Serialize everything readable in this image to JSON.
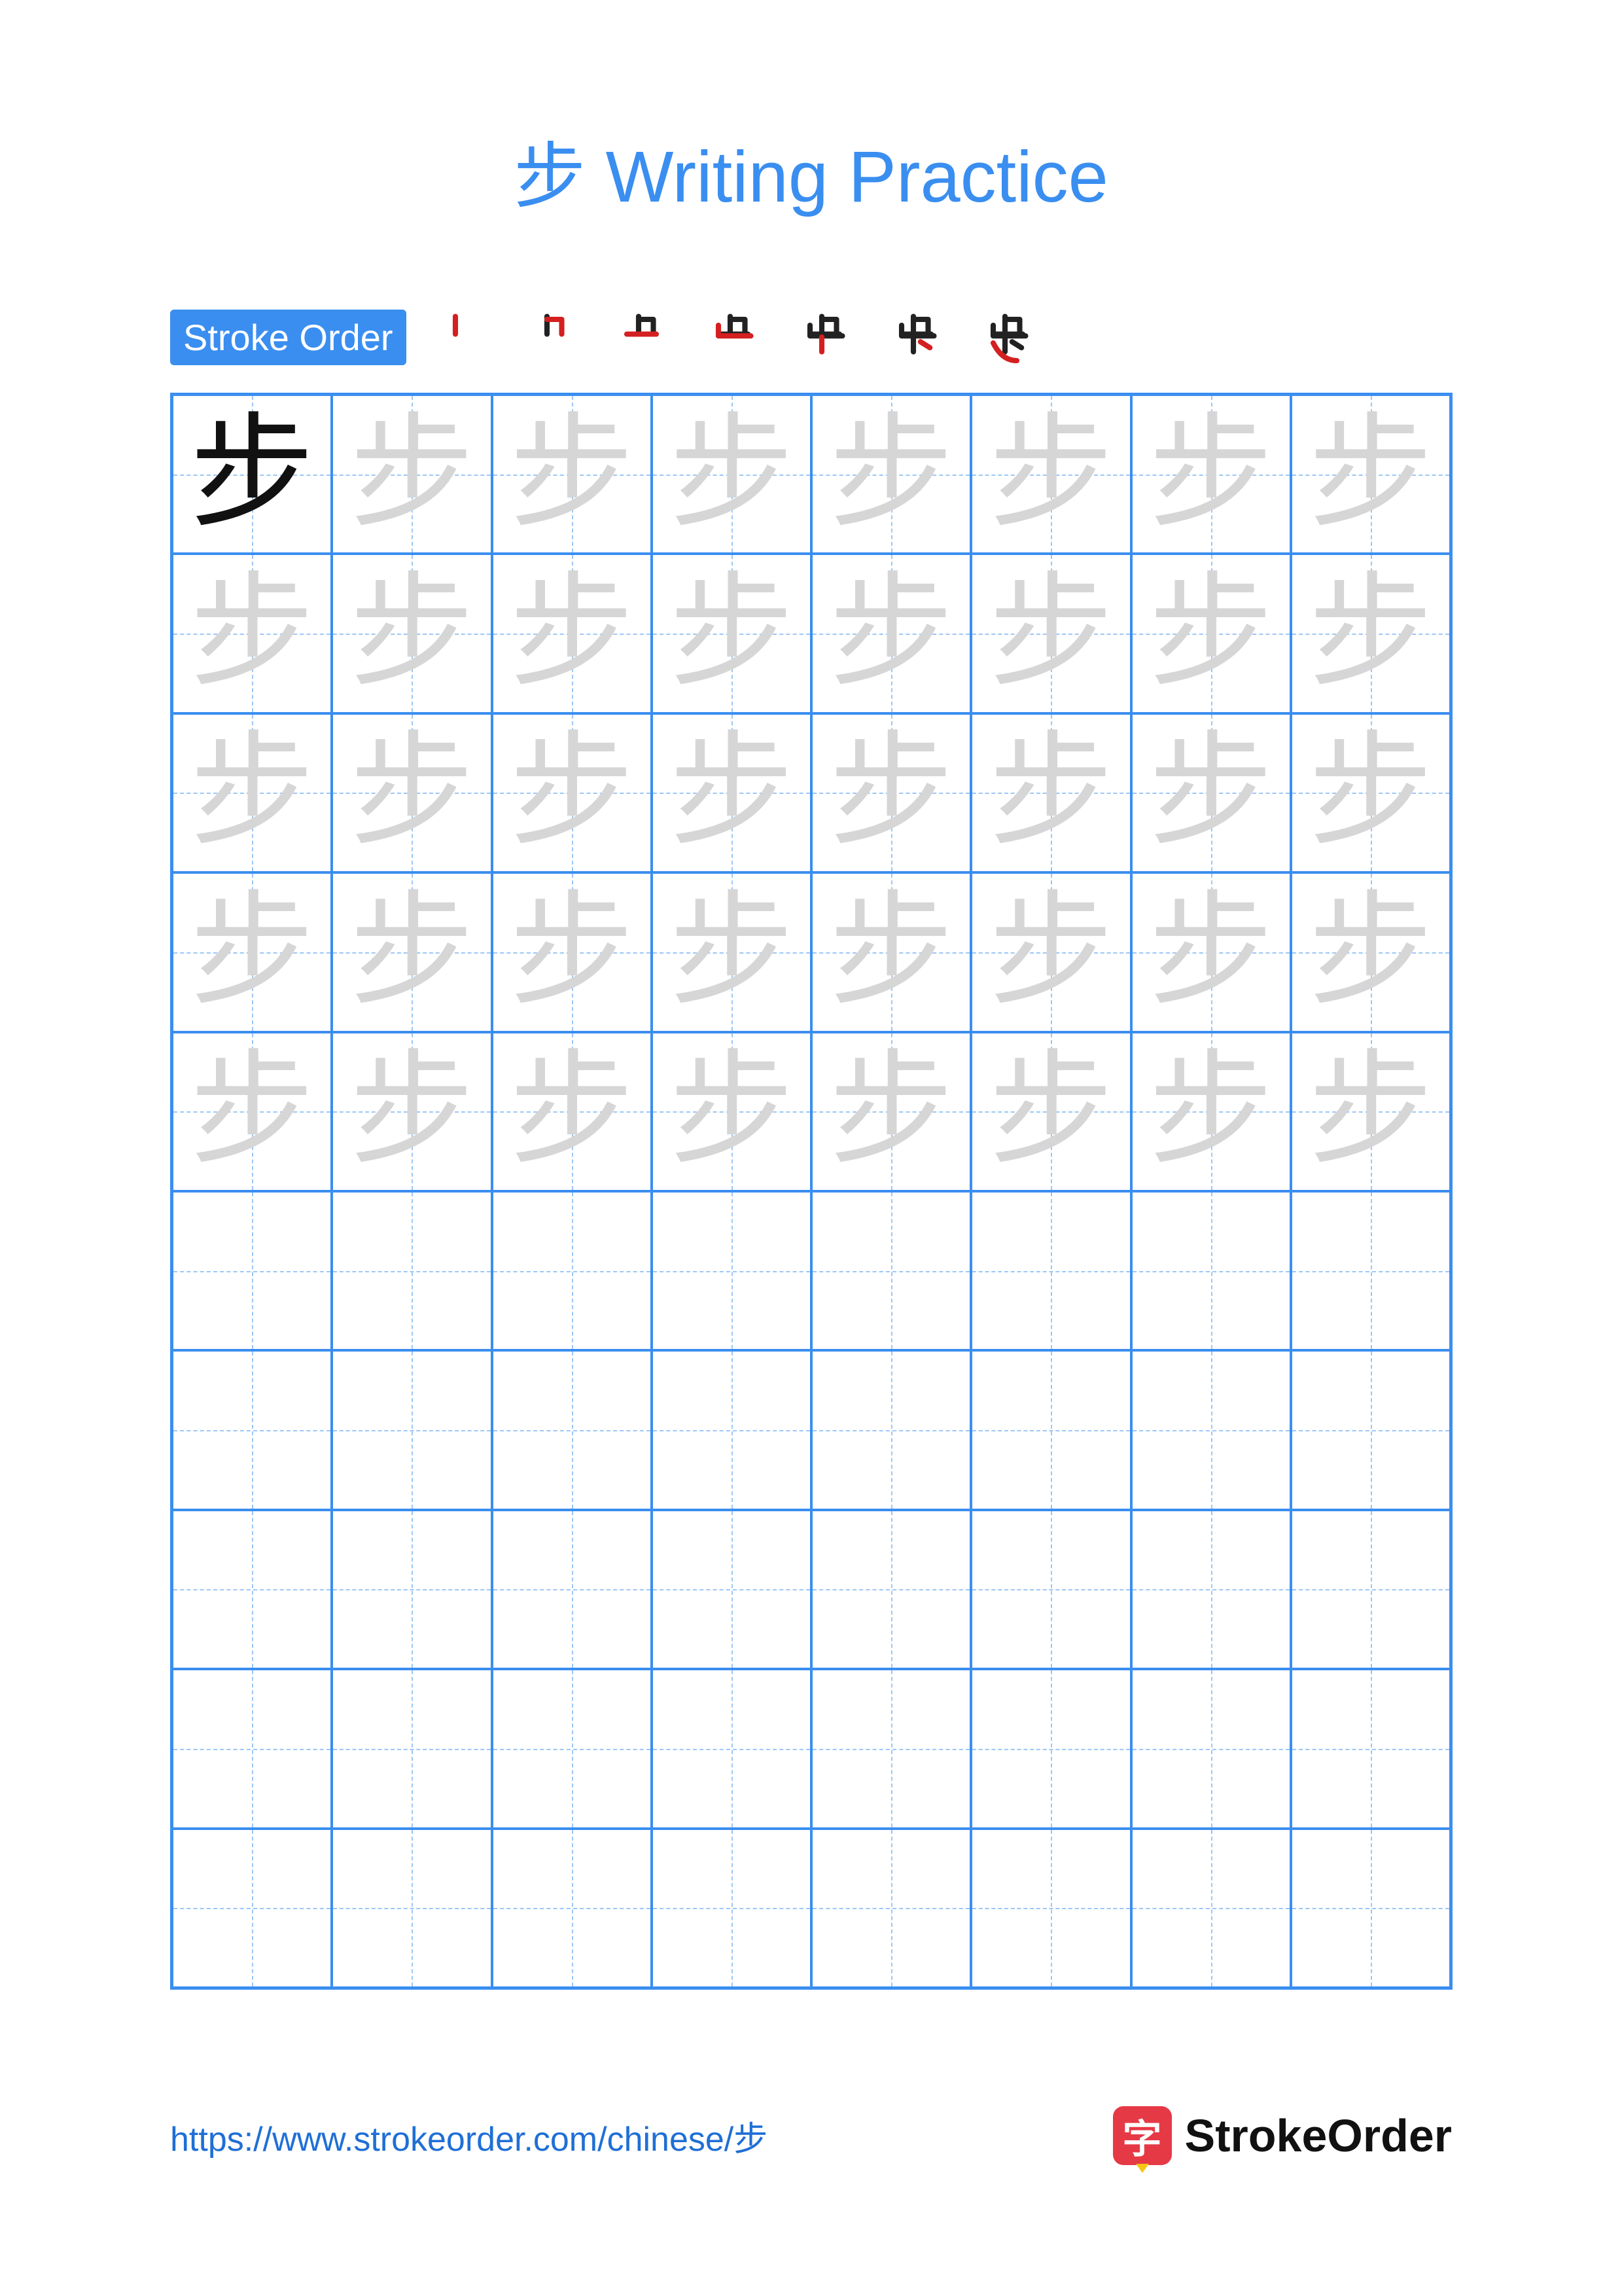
{
  "title_color": "#3a8ef0",
  "character": "步",
  "title": "步 Writing Practice",
  "stroke_order_label": "Stroke Order",
  "stroke_order_bg": "#3a8ef0",
  "stroke_count": 7,
  "stroke_black": "#222222",
  "stroke_red": "#d42020",
  "grid": {
    "cols": 8,
    "rows": 10,
    "trace_rows": 5,
    "border_color": "#3a8ef0",
    "guide_color": "#9cc7f7",
    "solid_char_color": "#111111",
    "trace_char_color": "#d6d6d6"
  },
  "footer": {
    "url": "https://www.strokeorder.com/chinese/步",
    "url_color": "#1f6fd6",
    "brand": "StrokeOrder",
    "logo_char": "字",
    "logo_bg": "#e63946"
  }
}
